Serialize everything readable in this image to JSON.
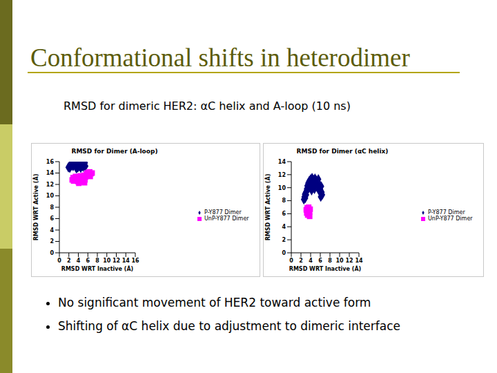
{
  "slide": {
    "title": "Conformational shifts in heterodimer",
    "subtitle": "RMSD for dimeric HER2: αC helix and A-loop (10 ns)",
    "bullets": [
      "No significant movement of HER2 toward active form",
      "Shifting of αC helix due to adjustment to dimeric interface"
    ]
  },
  "chart_data": [
    {
      "type": "scatter",
      "title": "RMSD for Dimer (A-loop)",
      "x_label": "RMSD WRT Inactive (Å)",
      "y_label": "RMSD WRT Active (Å)",
      "xlim": [
        0,
        16
      ],
      "xticks": [
        0,
        2,
        4,
        6,
        8,
        10,
        12,
        14,
        16
      ],
      "ylim": [
        0,
        16
      ],
      "yticks": [
        0,
        2,
        4,
        6,
        8,
        10,
        12,
        14,
        16
      ],
      "grid": false,
      "legend": "right",
      "series": [
        {
          "name": "P-Y877 Dimer",
          "color": "#000080",
          "marker": "diamond",
          "x": [
            1.9,
            2.1,
            2.3,
            2.4,
            2.6,
            2.7,
            2.9,
            3.0,
            3.1,
            3.3,
            3.4,
            3.5,
            3.7,
            3.8,
            3.9,
            4.0,
            4.2,
            4.3,
            4.4,
            4.5,
            4.6,
            4.8,
            4.9,
            5.0,
            5.2,
            5.3,
            5.4,
            5.5,
            2.2,
            3.6,
            4.1
          ],
          "y": [
            15.0,
            15.2,
            15.1,
            15.4,
            15.3,
            15.6,
            15.2,
            15.5,
            15.8,
            15.4,
            15.1,
            15.6,
            15.3,
            15.7,
            15.0,
            15.5,
            15.2,
            15.6,
            15.4,
            14.9,
            15.7,
            15.3,
            15.5,
            15.1,
            15.6,
            15.3,
            15.8,
            15.2,
            14.9,
            14.8,
            15.9
          ]
        },
        {
          "name": "UnP-Y877 Dimer",
          "color": "#ff00ff",
          "marker": "square",
          "x": [
            2.7,
            2.9,
            3.0,
            3.2,
            3.4,
            3.5,
            3.7,
            3.9,
            4.0,
            4.2,
            4.4,
            4.5,
            4.7,
            4.9,
            5.0,
            5.2,
            5.4,
            5.5,
            5.7,
            5.9,
            6.0,
            6.2,
            6.4,
            6.5,
            6.7,
            6.9,
            5.3,
            4.1
          ],
          "y": [
            12.8,
            13.2,
            12.6,
            13.0,
            13.4,
            12.8,
            13.1,
            12.5,
            13.3,
            12.9,
            13.5,
            12.7,
            13.2,
            12.4,
            13.0,
            13.6,
            12.8,
            13.3,
            13.9,
            13.5,
            14.1,
            13.7,
            14.2,
            13.4,
            13.9,
            14.0,
            12.3,
            12.2
          ]
        }
      ]
    },
    {
      "type": "scatter",
      "title": "RMSD for Dimer (αC helix)",
      "x_label": "RMSD WRT Inactive (Å)",
      "y_label": "RMSD WRT Active (Å)",
      "xlim": [
        0,
        14
      ],
      "xticks": [
        0,
        2,
        4,
        6,
        8,
        10,
        12,
        14
      ],
      "ylim": [
        0,
        14
      ],
      "yticks": [
        0,
        2,
        4,
        6,
        8,
        10,
        12,
        14
      ],
      "grid": false,
      "legend": "right",
      "series": [
        {
          "name": "P-Y877 Dimer",
          "color": "#000080",
          "marker": "diamond",
          "x": [
            2.6,
            2.7,
            2.8,
            2.9,
            3.0,
            3.1,
            3.2,
            3.3,
            3.5,
            3.6,
            3.7,
            3.9,
            4.0,
            4.1,
            4.3,
            4.4,
            4.6,
            4.7,
            4.9,
            5.0,
            5.2,
            5.3,
            5.5,
            5.6,
            5.8,
            5.9,
            6.0,
            6.2,
            6.3,
            6.4,
            6.1,
            5.7,
            4.8,
            4.2
          ],
          "y": [
            8.2,
            8.6,
            9.0,
            8.4,
            9.3,
            8.9,
            9.8,
            10.3,
            10.7,
            9.9,
            11.0,
            10.4,
            11.3,
            10.0,
            11.5,
            10.6,
            11.2,
            10.2,
            11.4,
            10.8,
            11.1,
            10.3,
            10.9,
            11.3,
            10.5,
            10.1,
            9.7,
            10.2,
            9.3,
            8.9,
            8.6,
            9.6,
            9.8,
            9.6
          ]
        },
        {
          "name": "UnP-Y877 Dimer",
          "color": "#ff00ff",
          "marker": "square",
          "x": [
            3.1,
            3.2,
            3.3,
            3.4,
            3.5,
            3.6,
            3.7,
            3.8,
            3.9,
            3.6,
            3.3,
            3.8
          ],
          "y": [
            6.6,
            6.1,
            6.9,
            5.8,
            6.4,
            7.0,
            6.2,
            5.6,
            6.7,
            6.0,
            6.4,
            6.3
          ]
        }
      ]
    }
  ]
}
